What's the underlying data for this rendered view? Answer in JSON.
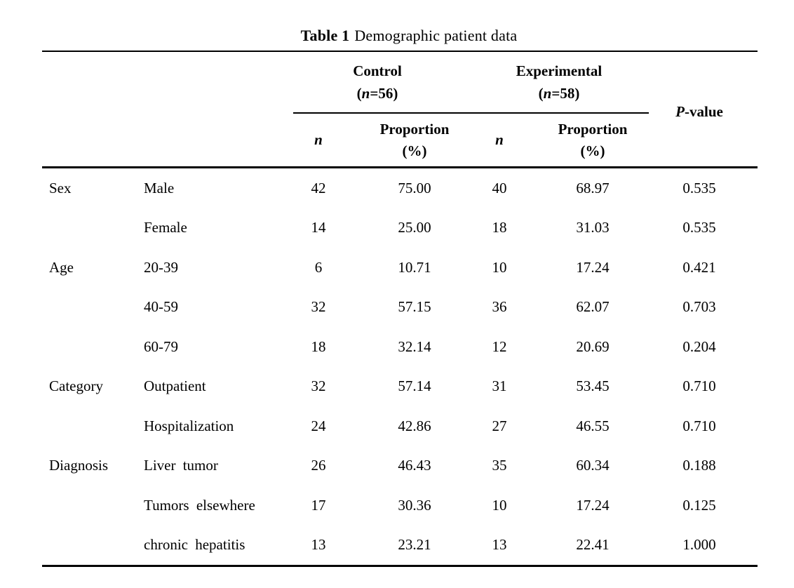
{
  "title": {
    "label": "Table 1",
    "caption": "Demographic patient data"
  },
  "header": {
    "control": {
      "name": "Control",
      "n_open": "(",
      "n_symbol": "n",
      "n_rest": "=56)"
    },
    "experimental": {
      "name": "Experimental",
      "n_open": "(",
      "n_symbol": "n",
      "n_rest": "=58)"
    },
    "p_value": {
      "symbol": "P",
      "rest": "-value"
    },
    "subheaders": {
      "n_symbol": "n",
      "proportion": "Proportion",
      "percent": "(%)"
    }
  },
  "rows": [
    {
      "group": "Sex",
      "label": "Male",
      "c_n": "42",
      "c_prop": "75.00",
      "e_n": "40",
      "e_prop": "68.97",
      "p": "0.535"
    },
    {
      "group": "",
      "label": "Female",
      "c_n": "14",
      "c_prop": "25.00",
      "e_n": "18",
      "e_prop": "31.03",
      "p": "0.535"
    },
    {
      "group": "Age",
      "label": "20-39",
      "c_n": "6",
      "c_prop": "10.71",
      "e_n": "10",
      "e_prop": "17.24",
      "p": "0.421"
    },
    {
      "group": "",
      "label": "40-59",
      "c_n": "32",
      "c_prop": "57.15",
      "e_n": "36",
      "e_prop": "62.07",
      "p": "0.703"
    },
    {
      "group": "",
      "label": "60-79",
      "c_n": "18",
      "c_prop": "32.14",
      "e_n": "12",
      "e_prop": "20.69",
      "p": "0.204"
    },
    {
      "group": "Category",
      "label": "Outpatient",
      "c_n": "32",
      "c_prop": "57.14",
      "e_n": "31",
      "e_prop": "53.45",
      "p": "0.710"
    },
    {
      "group": "",
      "label": "Hospitalization",
      "c_n": "24",
      "c_prop": "42.86",
      "e_n": "27",
      "e_prop": "46.55",
      "p": "0.710"
    },
    {
      "group": "Diagnosis",
      "label": "Liver tumor",
      "c_n": "26",
      "c_prop": "46.43",
      "e_n": "35",
      "e_prop": "60.34",
      "p": "0.188"
    },
    {
      "group": "",
      "label": "Tumors elsewhere",
      "c_n": "17",
      "c_prop": "30.36",
      "e_n": "10",
      "e_prop": "17.24",
      "p": "0.125"
    },
    {
      "group": "",
      "label": "chronic hepatitis",
      "c_n": "13",
      "c_prop": "23.21",
      "e_n": "13",
      "e_prop": "22.41",
      "p": "1.000"
    }
  ]
}
